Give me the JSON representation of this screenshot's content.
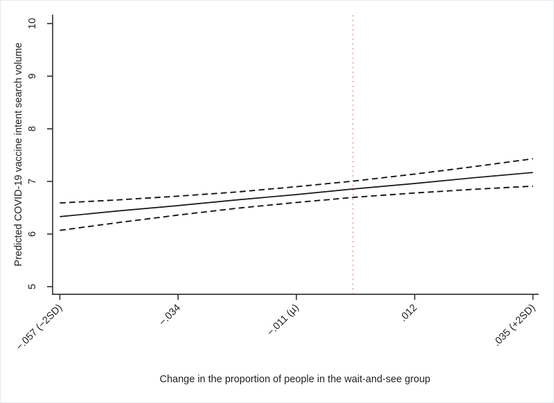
{
  "figure": {
    "x_axis_title": "Change in the proportion of people in the wait-and-see group",
    "y_axis_title": "Predicted COVID-19 vaccine intent search volume"
  },
  "colors": {
    "line": "#141414",
    "axis": "#3a3a3a",
    "tick_text": "#1f1f1f",
    "reference_line": "#dc8490",
    "background": "#ffffff",
    "frame_border": "#e2eaec"
  },
  "chart_data": {
    "type": "line",
    "title": "",
    "xlabel": "Change in the proportion of people in the wait-and-see group",
    "ylabel": "Predicted COVID-19 vaccine intent search volume",
    "xlim": [
      -0.0584,
      0.036
    ],
    "ylim": [
      4.855,
      10.158
    ],
    "grid": false,
    "legend_position": "none",
    "x_ticks": [
      {
        "value": -0.057,
        "label": "−.057 (−2SD)"
      },
      {
        "value": -0.034,
        "label": "−.034"
      },
      {
        "value": -0.011,
        "label": "−.011 (µ)"
      },
      {
        "value": 0.012,
        "label": ".012"
      },
      {
        "value": 0.035,
        "label": ".035 (+2SD)"
      }
    ],
    "y_ticks": [
      {
        "value": 5,
        "label": "5"
      },
      {
        "value": 6,
        "label": "6"
      },
      {
        "value": 7,
        "label": "7"
      },
      {
        "value": 8,
        "label": "8"
      },
      {
        "value": 9,
        "label": "9"
      },
      {
        "value": 10,
        "label": "10"
      }
    ],
    "series": [
      {
        "name": "predicted-fit",
        "style": "solid",
        "x": [
          -0.057,
          -0.0455,
          -0.034,
          -0.0225,
          -0.011,
          0.0005,
          0.012,
          0.0235,
          0.035
        ],
        "y": [
          6.33,
          6.44,
          6.54,
          6.65,
          6.75,
          6.86,
          6.96,
          7.07,
          7.17
        ]
      },
      {
        "name": "ci-upper",
        "style": "dashed",
        "x": [
          -0.057,
          -0.0455,
          -0.034,
          -0.0225,
          -0.011,
          0.0005,
          0.012,
          0.0235,
          0.035
        ],
        "y": [
          6.59,
          6.65,
          6.72,
          6.8,
          6.9,
          7.01,
          7.14,
          7.28,
          7.43
        ]
      },
      {
        "name": "ci-lower",
        "style": "dashed",
        "x": [
          -0.057,
          -0.0455,
          -0.034,
          -0.0225,
          -0.011,
          0.0005,
          0.012,
          0.0235,
          0.035
        ],
        "y": [
          6.07,
          6.22,
          6.36,
          6.49,
          6.6,
          6.7,
          6.78,
          6.85,
          6.91
        ]
      }
    ],
    "reference_lines": [
      {
        "axis": "x",
        "value": 0,
        "style": "dotted",
        "color": "#dc8490"
      }
    ]
  }
}
